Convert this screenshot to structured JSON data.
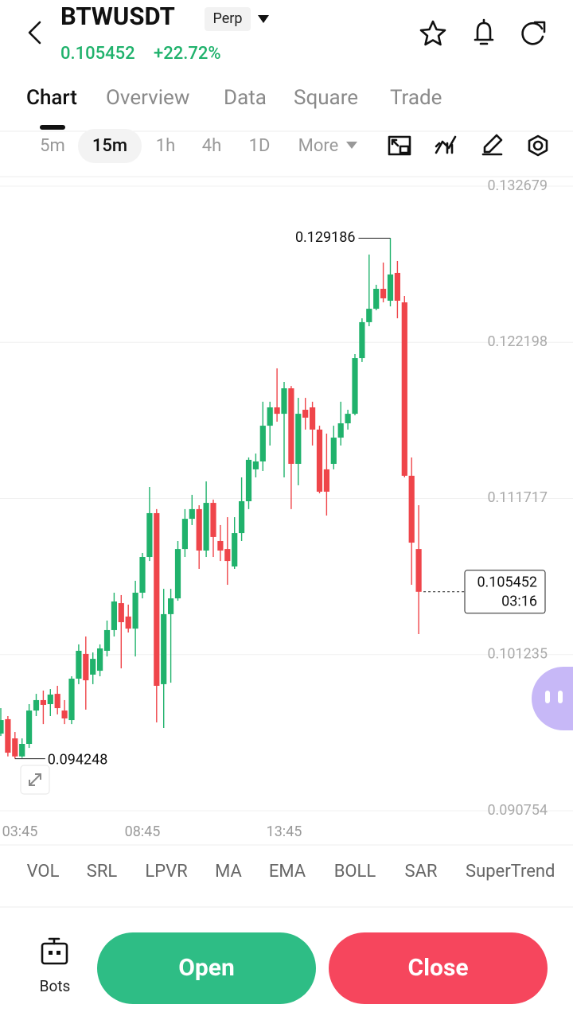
{
  "header": {
    "symbol": "BTWUSDT",
    "badge": "Perp",
    "change": "+22.72%"
  },
  "tabs": [
    "Chart",
    "Overview",
    "Data",
    "Square",
    "Trade"
  ],
  "intervals": [
    "5m",
    "15m",
    "1h",
    "4h",
    "1D",
    "More"
  ],
  "chart_data": {
    "type": "candlestick",
    "categories": [
      "03:45",
      null,
      null,
      null,
      null,
      null,
      null,
      null,
      null,
      null,
      null,
      null,
      null,
      null,
      null,
      null,
      null,
      null,
      null,
      null,
      "08:45",
      null,
      null,
      null,
      null,
      null,
      null,
      null,
      null,
      null,
      null,
      null,
      null,
      null,
      null,
      null,
      null,
      null,
      null,
      null,
      "13:45",
      null,
      null,
      null,
      null,
      null,
      null,
      null,
      null,
      null,
      null,
      null,
      null,
      null,
      null,
      null,
      null,
      null,
      null,
      null
    ],
    "open": [
      0.09593,
      0.0969,
      0.09561,
      0.0944,
      0.09524,
      0.09748,
      0.09818,
      0.09791,
      0.0986,
      0.09748,
      0.09684,
      0.09962,
      0.10128,
      0.09989,
      0.10015,
      0.10149,
      0.10288,
      0.10469,
      0.10379,
      0.10298,
      0.10539,
      0.10779,
      0.11073,
      0.09925,
      0.10395,
      0.10501,
      0.10832,
      0.11035,
      0.111,
      0.10822,
      0.11142,
      0.10886,
      0.10832,
      0.10715,
      0.10939,
      0.11153,
      0.11367,
      0.1142,
      0.1166,
      0.11783,
      0.1174,
      0.11911,
      0.11404,
      0.11767,
      0.11783,
      0.11634,
      0.11367,
      0.11404,
      0.1158,
      0.11676,
      0.1174,
      0.12114,
      0.12355,
      0.12445,
      0.12579,
      0.12499,
      0.12686,
      0.12488,
      0.11324,
      0.10832
    ],
    "high": [
      0.09764,
      0.09711,
      0.09604,
      0.09561,
      0.09791,
      0.0986,
      0.09882,
      0.09892,
      0.09914,
      0.09818,
      0.09978,
      0.10192,
      0.10245,
      0.10138,
      0.10192,
      0.10352,
      0.10539,
      0.10523,
      0.10459,
      0.10619,
      0.10806,
      0.11249,
      0.111,
      0.10565,
      0.10565,
      0.10886,
      0.111,
      0.11196,
      0.11126,
      0.11286,
      0.11164,
      0.10993,
      0.11046,
      0.11046,
      0.11313,
      0.11447,
      0.11473,
      0.11821,
      0.11821,
      0.12045,
      0.11954,
      0.11927,
      0.11847,
      0.11847,
      0.11821,
      0.1166,
      0.11607,
      0.1166,
      0.11821,
      0.11767,
      0.12141,
      0.12381,
      0.12809,
      0.12606,
      0.12755,
      0.129186,
      0.12766,
      0.12531,
      0.11447,
      0.11126
    ],
    "low": [
      0.09577,
      0.0944,
      0.094248,
      0.0943,
      0.09497,
      0.09711,
      0.09657,
      0.09711,
      0.09722,
      0.09657,
      0.09657,
      0.09925,
      0.09754,
      0.09925,
      0.09978,
      0.10111,
      0.10245,
      0.10031,
      0.10272,
      0.10111,
      0.10501,
      0.10752,
      0.09668,
      0.09631,
      0.09935,
      0.10485,
      0.10779,
      0.10993,
      0.10699,
      0.10779,
      0.10779,
      0.10752,
      0.10592,
      0.10699,
      0.10886,
      0.111,
      0.11313,
      0.11356,
      0.11527,
      0.11687,
      0.11313,
      0.111,
      0.1126,
      0.11634,
      0.11527,
      0.11206,
      0.11057,
      0.11367,
      0.11527,
      0.11634,
      0.1173,
      0.12088,
      0.12328,
      0.12435,
      0.12488,
      0.12461,
      0.12381,
      0.11313,
      0.10592,
      0.10261
    ],
    "close": [
      0.09684,
      0.09465,
      0.0944,
      0.09524,
      0.09748,
      0.09818,
      0.09786,
      0.09855,
      0.09764,
      0.09695,
      0.09962,
      0.10149,
      0.09951,
      0.10095,
      0.10165,
      0.10288,
      0.1048,
      0.10341,
      0.10298,
      0.10539,
      0.10779,
      0.11073,
      0.09914,
      0.10395,
      0.10501,
      0.10832,
      0.11035,
      0.111,
      0.10822,
      0.11142,
      0.10913,
      0.10822,
      0.10752,
      0.10939,
      0.11153,
      0.11431,
      0.1142,
      0.1166,
      0.11783,
      0.1174,
      0.11911,
      0.11404,
      0.1174,
      0.11714,
      0.11634,
      0.11217,
      0.11217,
      0.1158,
      0.11676,
      0.1174,
      0.12114,
      0.12355,
      0.12445,
      0.12579,
      0.12515,
      0.12675,
      0.12499,
      0.11324,
      0.10875,
      0.105452
    ],
    "up_color": "#20b26c",
    "down_color": "#ef454a",
    "ylim": [
      0.090754,
      0.132679
    ],
    "yticks": [
      0.132679,
      0.122198,
      0.111717,
      0.101235,
      0.090754
    ],
    "grid": true,
    "countdown": "03:16"
  },
  "indicators": [
    "VOL",
    "SRL",
    "LPVR",
    "MA",
    "EMA",
    "BOLL",
    "SAR",
    "SuperTrend"
  ],
  "footer": {
    "bots": "Bots",
    "open": "Open",
    "close": "Close"
  }
}
